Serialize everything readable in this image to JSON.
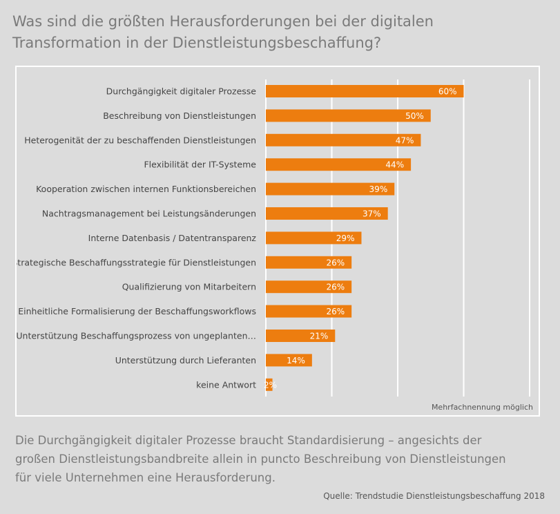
{
  "header": {
    "title_line1": "Was sind die größten Herausforderungen bei der digitalen",
    "title_line2": "Transformation in der Dienstleistungsbeschaffung?"
  },
  "chart_data": {
    "type": "bar",
    "orientation": "horizontal",
    "categories": [
      "Durchgängigkeit digitaler Prozesse",
      "Beschreibung von Dienstleistungen",
      "Heterogenität der zu beschaffenden Dienstleistungen",
      "Flexibilität der IT-Systeme",
      "Kooperation zwischen internen Funktionsbereichen",
      "Nachtragsmanagement bei Leistungsänderungen",
      "Interne Datenbasis / Datentransparenz",
      "Strategische Beschaffungsstrategie für Dienstleistungen",
      "Qualifizierung von Mitarbeitern",
      "Einheitliche Formalisierung der Beschaffungsworkflows",
      "Unterstützung Beschaffungsprozess von ungeplanten…",
      "Unterstützung durch Lieferanten",
      "keine Antwort"
    ],
    "values": [
      60,
      50,
      47,
      44,
      39,
      37,
      29,
      26,
      26,
      26,
      21,
      14,
      2
    ],
    "value_labels": [
      "60%",
      "50%",
      "47%",
      "44%",
      "39%",
      "37%",
      "29%",
      "26%",
      "26%",
      "26%",
      "21%",
      "14%",
      "2%"
    ],
    "unit": "%",
    "xlim": [
      0,
      80
    ],
    "grid": true,
    "bar_color": "#ed7d0f",
    "gridline_color": "#ffffff",
    "note": "Mehrfachnennung möglich"
  },
  "caption": {
    "line1": "Die Durchgängigkeit digitaler Prozesse braucht Standardisierung – angesichts der",
    "line2": "großen Dienstleistungsbandbreite allein in puncto Beschreibung von Dienstleistungen",
    "line3": "für viele Unternehmen eine Herausforderung."
  },
  "source": "Quelle: Trendstudie Dienstleistungsbeschaffung 2018"
}
